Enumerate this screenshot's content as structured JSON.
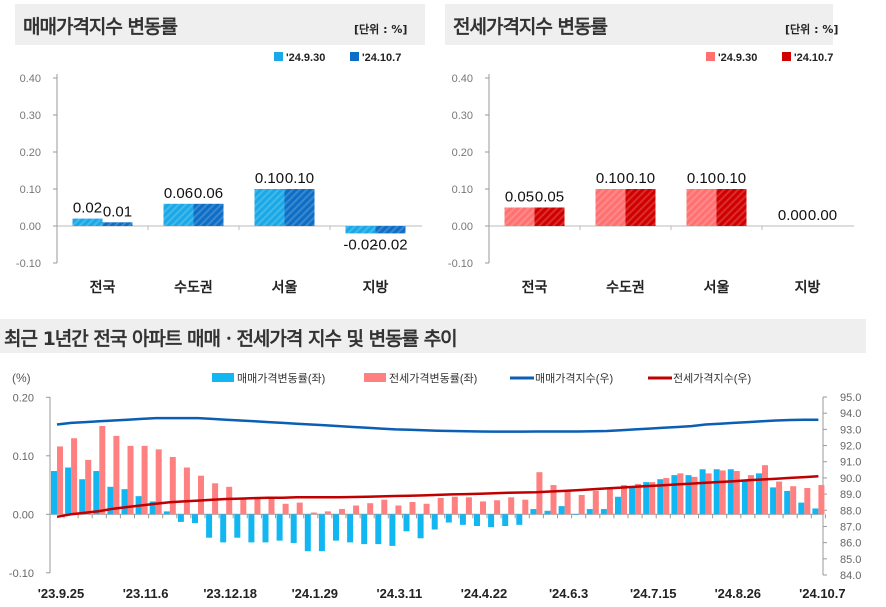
{
  "colors": {
    "sale_prev": "#1aa9e6",
    "sale_curr": "#0e6ec6",
    "jeonse_prev": "#ff7070",
    "jeonse_curr": "#d10000",
    "bottom_sale_bar": "#12b7f2",
    "bottom_jeonse_bar": "#ff8080",
    "sale_index_line": "#0a5fb4",
    "jeonse_index_line": "#c00000"
  },
  "chart_data": [
    {
      "type": "bar",
      "title": "매매가격지수 변동률",
      "unit": "[단위 : %]",
      "categories": [
        "전국",
        "수도권",
        "서울",
        "지방"
      ],
      "series": [
        {
          "name": "'24.9.30",
          "values": [
            0.02,
            0.06,
            0.1,
            -0.02
          ]
        },
        {
          "name": "'24.10.7",
          "values": [
            0.01,
            0.06,
            0.1,
            -0.02
          ]
        }
      ],
      "ylim": [
        -0.1,
        0.4
      ],
      "yticks": [
        0.4,
        0.3,
        0.2,
        0.1,
        0.0,
        -0.1
      ],
      "legend": "top-right",
      "grid": false
    },
    {
      "type": "bar",
      "title": "전세가격지수 변동률",
      "unit": "[단위 : %]",
      "categories": [
        "전국",
        "수도권",
        "서울",
        "지방"
      ],
      "series": [
        {
          "name": "'24.9.30",
          "values": [
            0.05,
            0.1,
            0.1,
            0.0
          ]
        },
        {
          "name": "'24.10.7",
          "values": [
            0.05,
            0.1,
            0.1,
            0.0
          ]
        }
      ],
      "ylim": [
        -0.1,
        0.4
      ],
      "yticks": [
        0.4,
        0.3,
        0.2,
        0.1,
        0.0,
        -0.1
      ],
      "legend": "top-right",
      "grid": false
    },
    {
      "type": "bar+line",
      "title": "최근 1년간 전국 아파트 매매ㆍ전세가격 지수 및 변동률 추이",
      "ylabel_left": "(%)",
      "x_tick_labels": [
        "'23.9.25",
        "'23.11.6",
        "'23.12.18",
        "'24.1.29",
        "'24.3.11",
        "'24.4.22",
        "'24.6.3",
        "'24.7.15",
        "'24.8.26",
        "'24.10.7"
      ],
      "ylim_left": [
        -0.1,
        0.2
      ],
      "yticks_left": [
        0.2,
        0.1,
        0.0,
        -0.1
      ],
      "ylim_right": [
        84.0,
        95.0
      ],
      "yticks_right": [
        95.0,
        94.0,
        93.0,
        92.0,
        91.0,
        90.0,
        89.0,
        88.0,
        87.0,
        86.0,
        85.0,
        84.0
      ],
      "legend": "top",
      "series": [
        {
          "name": "매매가격변동률(좌)",
          "kind": "bar",
          "axis": "left",
          "values": [
            0.074,
            0.08,
            0.06,
            0.074,
            0.047,
            0.043,
            0.031,
            0.022,
            0.005,
            -0.013,
            -0.015,
            -0.04,
            -0.048,
            -0.04,
            -0.048,
            -0.048,
            -0.045,
            -0.049,
            -0.063,
            -0.063,
            -0.045,
            -0.048,
            -0.051,
            -0.051,
            -0.054,
            -0.029,
            -0.041,
            -0.026,
            -0.014,
            -0.018,
            -0.02,
            -0.022,
            -0.02,
            -0.018,
            0.009,
            0.006,
            0.014,
            -0.001,
            0.009,
            0.009,
            0.03,
            0.045,
            0.055,
            0.06,
            0.067,
            0.067,
            0.077,
            0.077,
            0.077,
            0.059,
            0.07,
            0.046,
            0.04,
            0.02,
            0.01
          ]
        },
        {
          "name": "전세가격변동률(좌)",
          "kind": "bar",
          "axis": "left",
          "values": [
            0.116,
            0.13,
            0.093,
            0.151,
            0.134,
            0.117,
            0.117,
            0.111,
            0.098,
            0.08,
            0.066,
            0.053,
            0.047,
            0.028,
            0.028,
            0.03,
            0.018,
            0.02,
            0.003,
            0.005,
            0.009,
            0.015,
            0.019,
            0.025,
            0.015,
            0.021,
            0.018,
            0.028,
            0.03,
            0.029,
            0.022,
            0.024,
            0.029,
            0.025,
            0.072,
            0.05,
            0.04,
            0.033,
            0.04,
            0.045,
            0.05,
            0.052,
            0.055,
            0.062,
            0.07,
            0.064,
            0.07,
            0.075,
            0.074,
            0.067,
            0.084,
            0.056,
            0.048,
            0.045,
            0.05
          ]
        },
        {
          "name": "매매가격지수(우)",
          "kind": "line",
          "axis": "right",
          "values": [
            93.3,
            93.4,
            93.45,
            93.5,
            93.55,
            93.6,
            93.65,
            93.7,
            93.7,
            93.7,
            93.7,
            93.65,
            93.6,
            93.55,
            93.5,
            93.45,
            93.4,
            93.35,
            93.3,
            93.25,
            93.2,
            93.15,
            93.1,
            93.05,
            93.0,
            92.98,
            92.95,
            92.92,
            92.9,
            92.88,
            92.87,
            92.86,
            92.86,
            92.86,
            92.87,
            92.87,
            92.87,
            92.87,
            92.88,
            92.9,
            92.95,
            93.0,
            93.05,
            93.1,
            93.15,
            93.2,
            93.3,
            93.35,
            93.4,
            93.45,
            93.5,
            93.55,
            93.58,
            93.6,
            93.6
          ]
        },
        {
          "name": "전세가격지수(우)",
          "kind": "line",
          "axis": "right",
          "values": [
            87.6,
            87.75,
            87.85,
            87.95,
            88.1,
            88.2,
            88.3,
            88.4,
            88.5,
            88.55,
            88.6,
            88.65,
            88.7,
            88.72,
            88.75,
            88.77,
            88.78,
            88.8,
            88.8,
            88.8,
            88.81,
            88.82,
            88.84,
            88.86,
            88.88,
            88.9,
            88.92,
            88.95,
            88.98,
            89.0,
            89.02,
            89.05,
            89.08,
            89.1,
            89.12,
            89.16,
            89.2,
            89.25,
            89.3,
            89.35,
            89.4,
            89.45,
            89.5,
            89.55,
            89.6,
            89.65,
            89.7,
            89.75,
            89.8,
            89.85,
            89.9,
            89.95,
            90.0,
            90.05,
            90.1
          ]
        }
      ]
    }
  ]
}
